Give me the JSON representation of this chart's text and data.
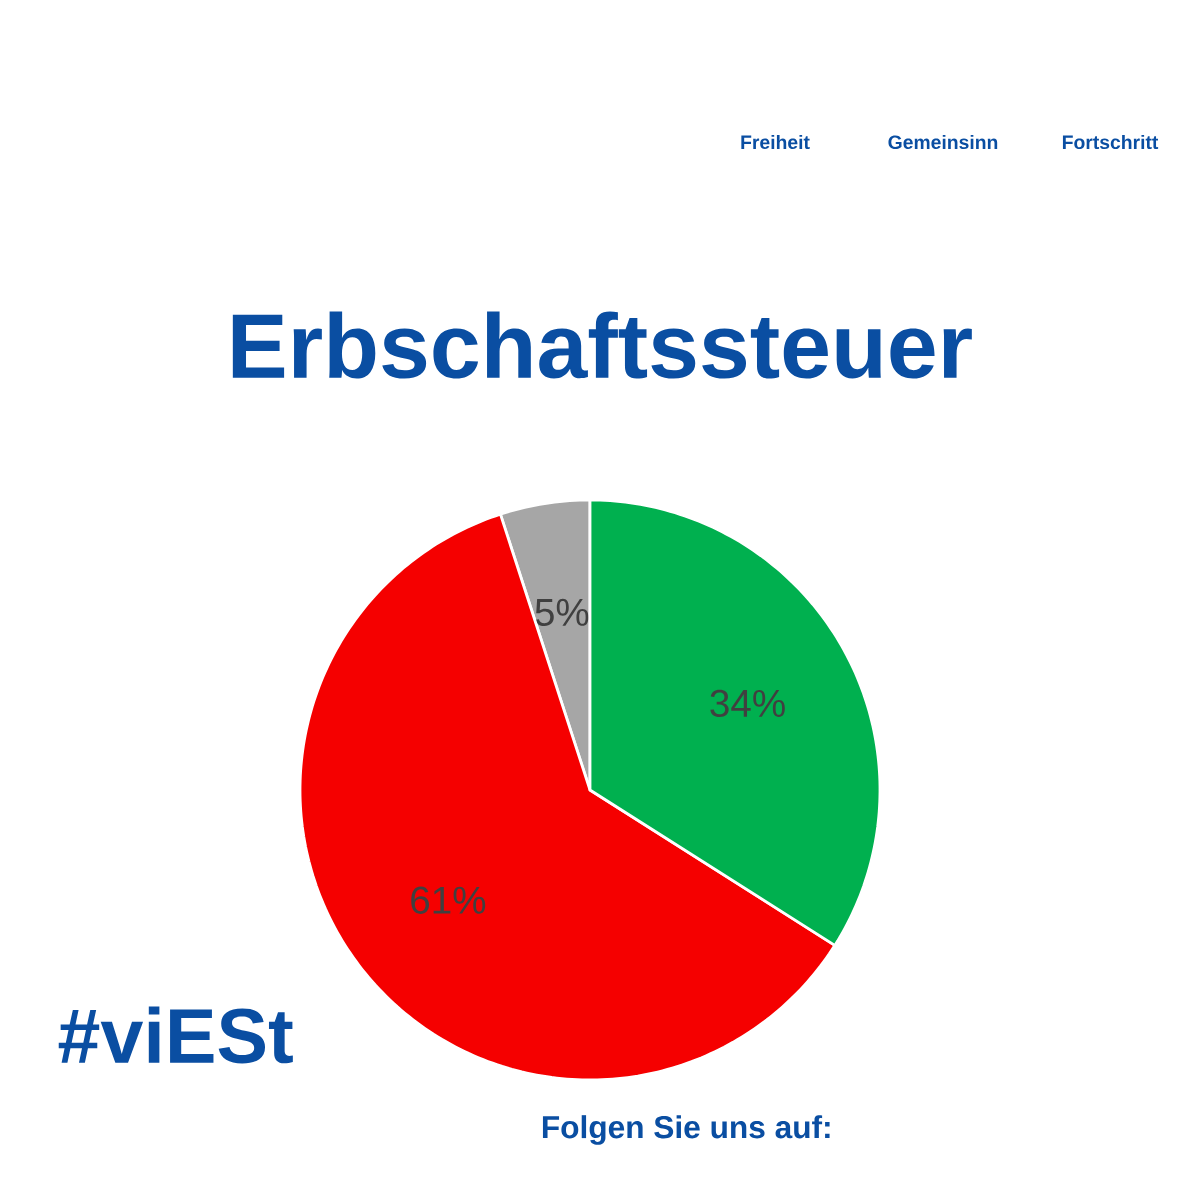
{
  "chart_data": {
    "type": "pie",
    "title": "Erbschaftssteuer",
    "categories": [
      null,
      null,
      null
    ],
    "values": [
      5,
      61,
      34
    ],
    "colors": [
      "#a6a6a6",
      "#f50000",
      "#00b04f"
    ],
    "value_labels": [
      "5%",
      "61%",
      "34%"
    ],
    "annotations": [
      "Freiheit",
      "Gemeinsinn",
      "Fortschritt",
      "#viESt",
      "Folgen Sie uns auf:"
    ]
  }
}
